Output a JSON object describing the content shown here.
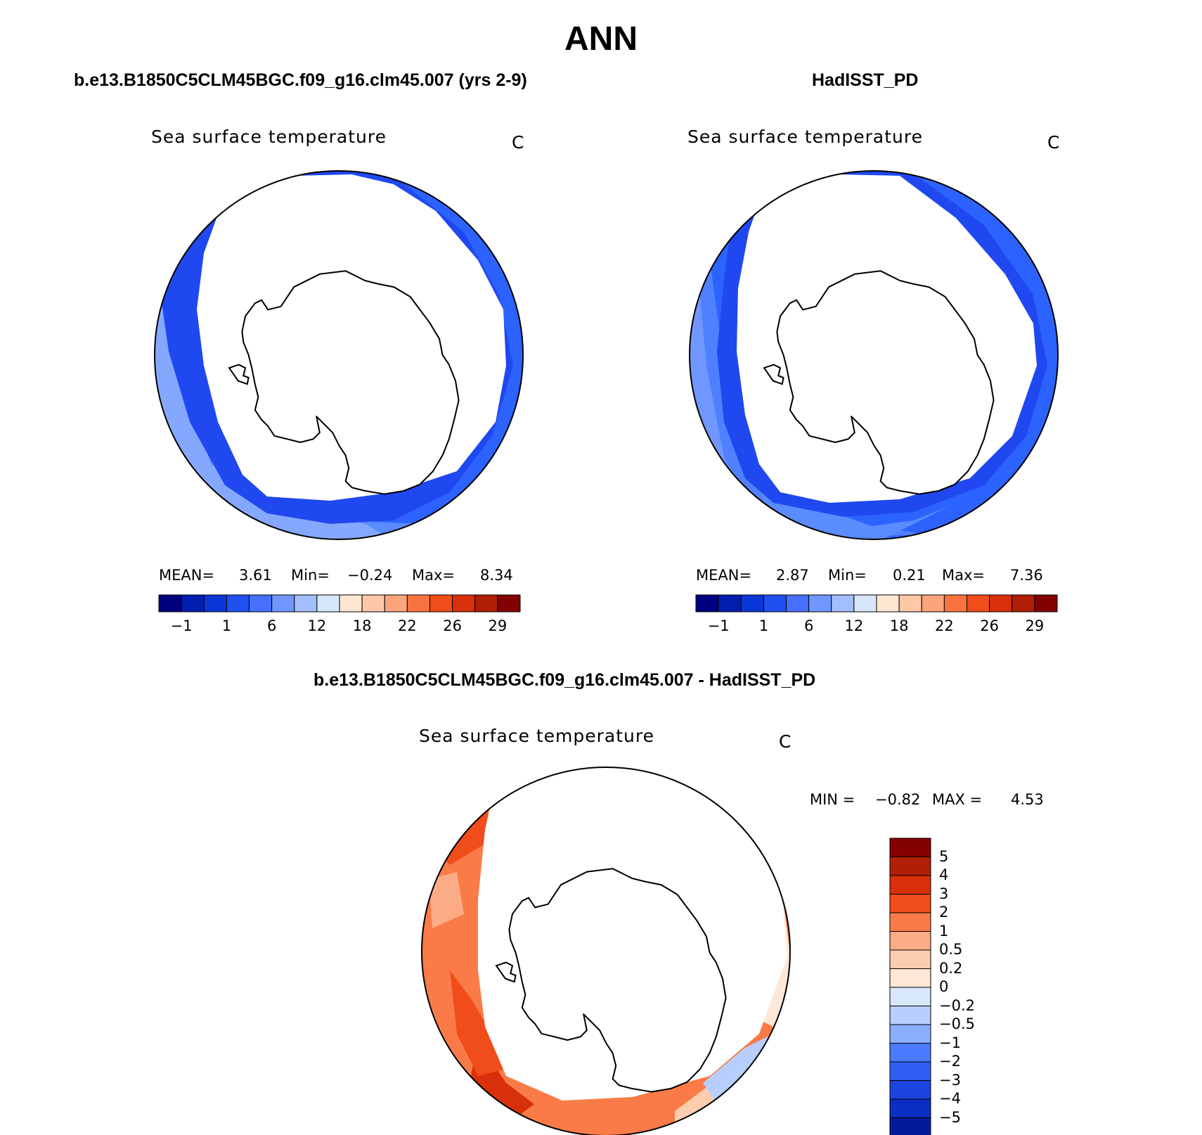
{
  "page": {
    "title": "ANN",
    "panels": [
      {
        "case_label": "b.e13.B1850C5CLM45BGC.f09_g16.clm45.007 (yrs 2-9)",
        "variable": "Sea surface temperature",
        "units": "C",
        "stats": {
          "mean_label": "MEAN=",
          "mean": "3.61",
          "min_label": "Min=",
          "min": "−0.24",
          "max_label": "Max=",
          "max": "8.34"
        }
      },
      {
        "case_label": "HadISST_PD",
        "variable": "Sea surface temperature",
        "units": "C",
        "stats": {
          "mean_label": "MEAN=",
          "mean": "2.87",
          "min_label": "Min=",
          "min": "0.21",
          "max_label": "Max=",
          "max": "7.36"
        }
      },
      {
        "case_label": "b.e13.B1850C5CLM45BGC.f09_g16.clm45.007 - HadISST_PD",
        "variable": "Sea surface temperature",
        "units": "C",
        "stats": {
          "min_label": "MIN =",
          "min": "−0.82",
          "max_label": "MAX =",
          "max": "4.53"
        }
      }
    ],
    "colorbar_top": {
      "colors": [
        "#00007f",
        "#001fb0",
        "#0a37d8",
        "#2150f0",
        "#4670ff",
        "#7097ff",
        "#a3beff",
        "#d6e6fb",
        "#fde6d2",
        "#fdc7a8",
        "#fca47c",
        "#f9733f",
        "#f04d1a",
        "#d8300a",
        "#b11f05",
        "#840000"
      ],
      "tick_labels": [
        "−1",
        "1",
        "6",
        "12",
        "18",
        "22",
        "26",
        "29"
      ]
    },
    "colorbar_diff": {
      "colors_top_to_bottom": [
        "#840000",
        "#b11f05",
        "#d8300a",
        "#f04d1a",
        "#fa7b47",
        "#fbab86",
        "#fdcdb0",
        "#fde7d7",
        "#d9e8fb",
        "#b8cffe",
        "#8caeff",
        "#4a7bff",
        "#2f5ff5",
        "#1c44e0",
        "#0a2fc2",
        "#031b99"
      ],
      "tick_labels": [
        "5",
        "4",
        "3",
        "2",
        "1",
        "0.5",
        "0.2",
        "0",
        "−0.2",
        "−0.5",
        "−1",
        "−2",
        "−3",
        "−4",
        "−5"
      ]
    }
  }
}
